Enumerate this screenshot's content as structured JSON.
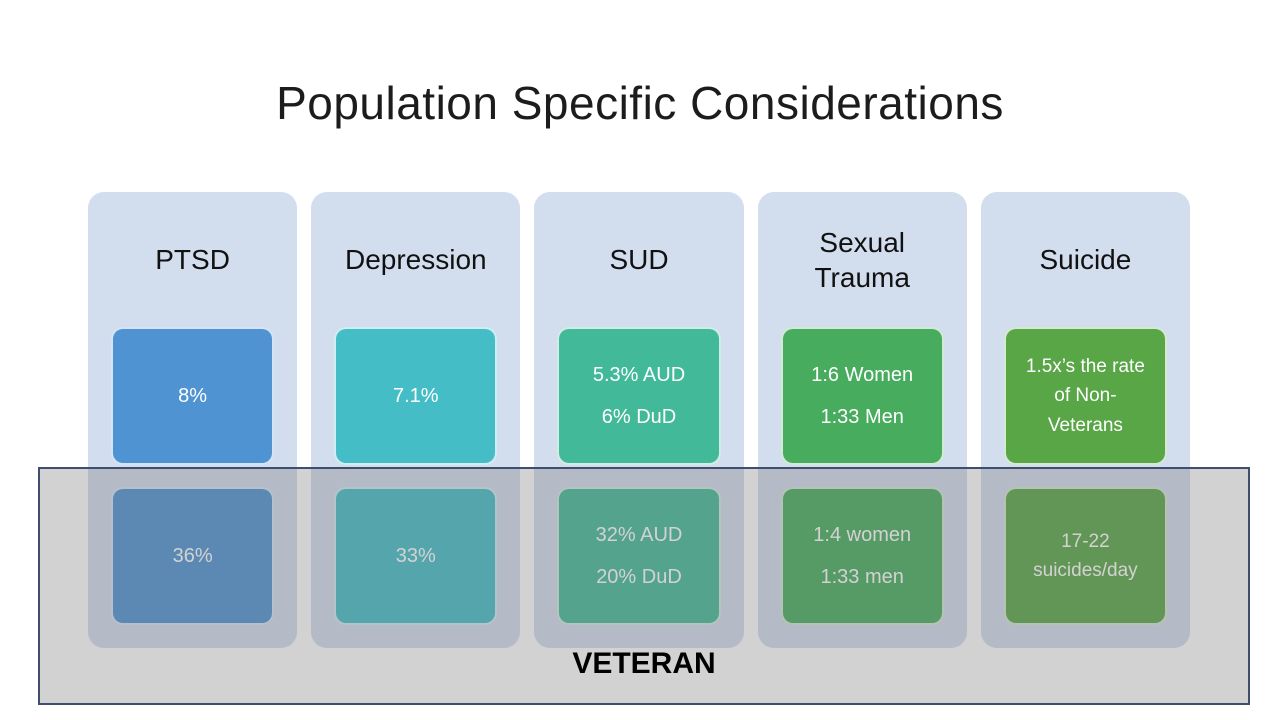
{
  "slide": {
    "title": "Population Specific Considerations",
    "band": {
      "label": "VETERAN",
      "overlay_color": "rgba(117,117,117,0.33)",
      "border_color": "#3f4e6e"
    },
    "column_bg": "#d2ddee",
    "columns": [
      {
        "header": "PTSD",
        "color": "#4f93d2",
        "general": [
          "8%"
        ],
        "veteran": [
          "36%"
        ]
      },
      {
        "header": "Depression",
        "color": "#45bdc7",
        "general": [
          "7.1%"
        ],
        "veteran": [
          "33%"
        ]
      },
      {
        "header": "SUD",
        "color": "#42b998",
        "general": [
          "5.3% AUD",
          "6% DuD"
        ],
        "veteran": [
          "32% AUD",
          "20% DuD"
        ]
      },
      {
        "header": "Sexual Trauma",
        "color": "#47ac5e",
        "general": [
          "1:6 Women",
          "1:33 Men"
        ],
        "veteran": [
          "1:4 women",
          "1:33 men"
        ]
      },
      {
        "header": "Suicide",
        "color": "#59a647",
        "general": [
          "1.5x’s the rate of Non-Veterans"
        ],
        "veteran": [
          "17-22 suicides/day"
        ]
      }
    ]
  }
}
